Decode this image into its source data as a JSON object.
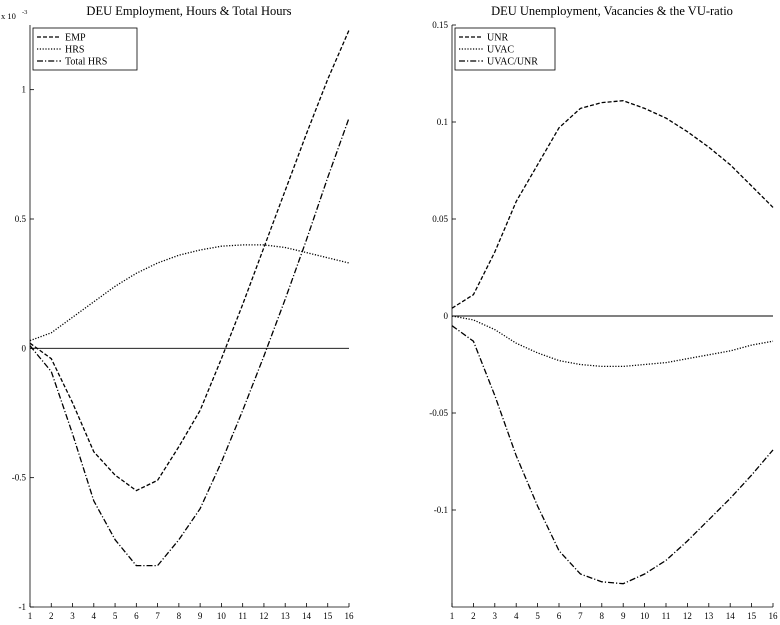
{
  "chart_data": [
    {
      "type": "line",
      "title": "DEU Employment, Hours & Total Hours",
      "y_exponent_label": "x 10",
      "y_exponent_power": "-3",
      "x": [
        1,
        2,
        3,
        4,
        5,
        6,
        7,
        8,
        9,
        10,
        11,
        12,
        13,
        14,
        15,
        16
      ],
      "xlim": [
        1,
        16
      ],
      "ylim": [
        -1,
        1.25
      ],
      "yticks": [
        -1,
        -0.5,
        0,
        0.5,
        1
      ],
      "ytick_labels": [
        "-1",
        "-0.5",
        "0",
        "0.5",
        "1"
      ],
      "xtick_labels": [
        "1",
        "2",
        "3",
        "4",
        "5",
        "6",
        "7",
        "8",
        "9",
        "10",
        "11",
        "12",
        "13",
        "14",
        "15",
        "16"
      ],
      "grid": false,
      "legend_position": "top-left",
      "zero_line": true,
      "series": [
        {
          "name": "EMP",
          "style": "dashed",
          "values": [
            0.02,
            -0.04,
            -0.21,
            -0.4,
            -0.49,
            -0.55,
            -0.51,
            -0.38,
            -0.24,
            -0.04,
            0.17,
            0.39,
            0.61,
            0.83,
            1.04,
            1.23
          ]
        },
        {
          "name": "HRS",
          "style": "dotted",
          "values": [
            0.03,
            0.06,
            0.12,
            0.18,
            0.24,
            0.29,
            0.33,
            0.36,
            0.38,
            0.395,
            0.4,
            0.4,
            0.39,
            0.37,
            0.35,
            0.33
          ]
        },
        {
          "name": "Total HRS",
          "style": "dashdot",
          "values": [
            0.01,
            -0.09,
            -0.33,
            -0.59,
            -0.74,
            -0.84,
            -0.84,
            -0.74,
            -0.62,
            -0.44,
            -0.24,
            -0.03,
            0.19,
            0.42,
            0.66,
            0.89
          ]
        }
      ]
    },
    {
      "type": "line",
      "title": "DEU Unemployment, Vacancies & the VU-ratio",
      "x": [
        1,
        2,
        3,
        4,
        5,
        6,
        7,
        8,
        9,
        10,
        11,
        12,
        13,
        14,
        15,
        16
      ],
      "xlim": [
        1,
        16
      ],
      "ylim": [
        -0.15,
        0.15
      ],
      "yticks": [
        -0.1,
        -0.05,
        0,
        0.05,
        0.1,
        0.15
      ],
      "ytick_labels": [
        "-0.1",
        "-0.05",
        "0",
        "0.05",
        "0.1",
        "0.15"
      ],
      "xtick_labels": [
        "1",
        "2",
        "3",
        "4",
        "5",
        "6",
        "7",
        "8",
        "9",
        "10",
        "11",
        "12",
        "13",
        "14",
        "15",
        "16"
      ],
      "grid": false,
      "legend_position": "top-left",
      "zero_line": true,
      "series": [
        {
          "name": "UNR",
          "style": "dashed",
          "values": [
            0.004,
            0.011,
            0.033,
            0.059,
            0.078,
            0.097,
            0.107,
            0.11,
            0.111,
            0.107,
            0.102,
            0.095,
            0.087,
            0.078,
            0.067,
            0.056
          ]
        },
        {
          "name": "UVAC",
          "style": "dotted",
          "values": [
            0.0,
            -0.002,
            -0.007,
            -0.014,
            -0.019,
            -0.023,
            -0.025,
            -0.026,
            -0.026,
            -0.025,
            -0.024,
            -0.022,
            -0.02,
            -0.018,
            -0.015,
            -0.013
          ]
        },
        {
          "name": "UVAC/UNR",
          "style": "dashdot",
          "values": [
            -0.005,
            -0.013,
            -0.041,
            -0.072,
            -0.098,
            -0.121,
            -0.133,
            -0.137,
            -0.138,
            -0.133,
            -0.126,
            -0.116,
            -0.105,
            -0.094,
            -0.082,
            -0.069
          ]
        }
      ]
    }
  ]
}
